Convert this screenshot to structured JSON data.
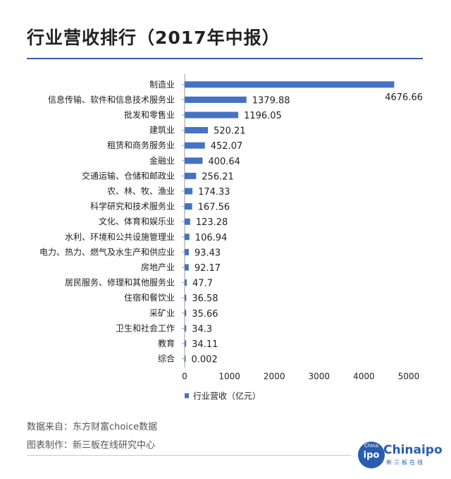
{
  "title": "行业营收排行（2017年中报）",
  "footer": {
    "source": "数据来自：东方财富choice数据",
    "credit": "图表制作：新三板在线研究中心"
  },
  "logo": {
    "circle_small": "China",
    "circle_main": "ipo",
    "brand": "Chinaipo",
    "subtitle": "新三板在线"
  },
  "colors": {
    "bar": "#4472c4",
    "accent": "#3d5aa8"
  },
  "chart_data": {
    "type": "bar",
    "orientation": "horizontal",
    "categories": [
      "制造业",
      "信息传输、软件和信息技术服务业",
      "批发和零售业",
      "建筑业",
      "租赁和商务服务业",
      "金融业",
      "交通运输、仓储和邮政业",
      "农、林、牧、渔业",
      "科学研究和技术服务业",
      "文化、体育和娱乐业",
      "水利、环境和公共设施管理业",
      "电力、热力、燃气及水生产和供应业",
      "房地产业",
      "居民服务、修理和其他服务业",
      "住宿和餐饮业",
      "采矿业",
      "卫生和社会工作",
      "教育",
      "综合"
    ],
    "series": [
      {
        "name": "行业营收（亿元）",
        "values": [
          4676.66,
          1379.88,
          1196.05,
          520.21,
          452.07,
          400.64,
          256.21,
          174.33,
          167.56,
          123.28,
          106.94,
          93.43,
          92.17,
          47.7,
          36.58,
          35.66,
          34.3,
          34.11,
          0.002
        ],
        "labels": [
          "4676.66",
          "1379.88",
          "1196.05",
          "520.21",
          "452.07",
          "400.64",
          "256.21",
          "174.33",
          "167.56",
          "123.28",
          "106.94",
          "93.43",
          "92.17",
          "47.7",
          "36.58",
          "35.66",
          "34.3",
          "34.11",
          "0.002"
        ]
      }
    ],
    "xlim": [
      0,
      5000
    ],
    "xticks": [
      "0",
      "1000",
      "2000",
      "3000",
      "4000",
      "5000"
    ],
    "legend_position": "bottom-left",
    "grid": false
  }
}
